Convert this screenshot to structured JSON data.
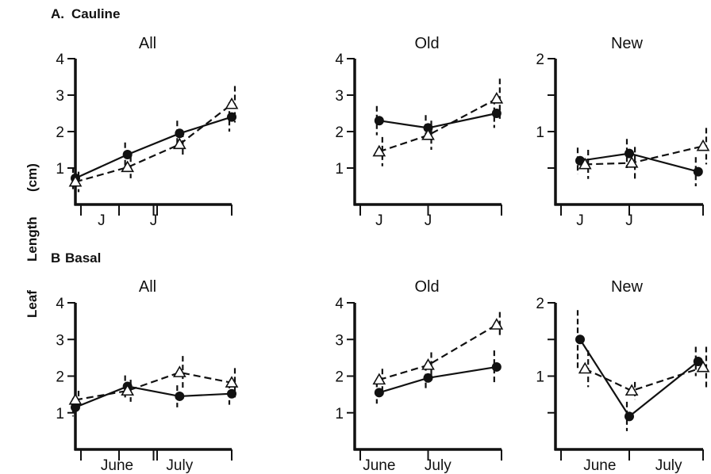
{
  "figure": {
    "ylabel_words": [
      "Leaf",
      "Length",
      "(cm)"
    ]
  },
  "sections": [
    {
      "letter": "A.",
      "title": "Cauline"
    },
    {
      "letter": "B",
      "title": "Basal"
    }
  ],
  "chart_data": [
    {
      "type": "line",
      "section": "A. Cauline",
      "title": "All",
      "ylabel": "Leaf Length (cm)",
      "x": [
        1,
        2,
        3,
        4
      ],
      "xlim": [
        1,
        4
      ],
      "x_tick_labels": [
        {
          "at": 1.5,
          "label": "J"
        },
        {
          "at": 2.5,
          "label": "J"
        }
      ],
      "ylim": [
        0,
        4
      ],
      "yticks": [
        1,
        2,
        3,
        4
      ],
      "series": [
        {
          "marker": "filled-circle",
          "line": "solid",
          "values": [
            0.72,
            1.37,
            1.95,
            2.4
          ],
          "err": [
            0.3,
            0.33,
            0.35,
            0.4
          ]
        },
        {
          "marker": "open-triangle",
          "line": "dashed",
          "values": [
            0.62,
            1.02,
            1.65,
            2.75
          ],
          "err": [
            0.28,
            0.3,
            0.35,
            0.5
          ]
        }
      ]
    },
    {
      "type": "line",
      "section": "A. Cauline",
      "title": "Old",
      "x": [
        1,
        2,
        3,
        4
      ],
      "xlim": [
        1,
        4
      ],
      "x_tick_labels": [
        {
          "at": 1.5,
          "label": "J"
        },
        {
          "at": 2.5,
          "label": "J"
        }
      ],
      "ylim": [
        0,
        4
      ],
      "yticks": [
        1,
        2,
        3,
        4
      ],
      "series": [
        {
          "marker": "filled-circle",
          "line": "solid",
          "values": [
            2.3,
            2.1,
            2.5
          ],
          "x": [
            1.5,
            2.5,
            3.9
          ],
          "err": [
            0.4,
            0.35,
            0.4
          ]
        },
        {
          "marker": "open-triangle",
          "line": "dashed",
          "values": [
            1.45,
            1.9,
            2.9
          ],
          "x": [
            1.5,
            2.5,
            3.9
          ],
          "err": [
            0.4,
            0.4,
            0.55
          ]
        }
      ]
    },
    {
      "type": "line",
      "section": "A. Cauline",
      "title": "New",
      "x": [
        1,
        2,
        3,
        4
      ],
      "xlim": [
        1,
        4
      ],
      "x_tick_labels": [
        {
          "at": 1.5,
          "label": "J"
        },
        {
          "at": 2.5,
          "label": "J"
        }
      ],
      "ylim": [
        0,
        2
      ],
      "yticks": [
        1,
        2
      ],
      "series": [
        {
          "marker": "filled-circle",
          "line": "solid",
          "values": [
            0.6,
            0.7,
            0.45
          ],
          "x": [
            1.5,
            2.5,
            3.9
          ],
          "err": [
            0.18,
            0.2,
            0.2
          ]
        },
        {
          "marker": "open-triangle",
          "line": "dashed",
          "values": [
            0.55,
            0.57,
            0.8
          ],
          "x": [
            1.6,
            2.55,
            4.0
          ],
          "err": [
            0.2,
            0.22,
            0.25
          ]
        }
      ]
    },
    {
      "type": "line",
      "section": "B Basal",
      "title": "All",
      "x": [
        1,
        2,
        3,
        4
      ],
      "xlim": [
        1,
        4
      ],
      "x_tick_labels": [
        {
          "at": 1.8,
          "label": "June"
        },
        {
          "at": 3.0,
          "label": "July"
        }
      ],
      "ylim": [
        0,
        4
      ],
      "yticks": [
        1,
        2,
        3,
        4
      ],
      "series": [
        {
          "marker": "filled-circle",
          "line": "solid",
          "values": [
            1.15,
            1.72,
            1.45,
            1.52
          ],
          "err": [
            0.25,
            0.3,
            0.3,
            0.3
          ]
        },
        {
          "marker": "open-triangle",
          "line": "dashed",
          "values": [
            1.35,
            1.6,
            2.1,
            1.82
          ],
          "err": [
            0.25,
            0.3,
            0.45,
            0.4
          ]
        }
      ]
    },
    {
      "type": "line",
      "section": "B Basal",
      "title": "Old",
      "x": [
        1,
        2,
        3,
        4
      ],
      "xlim": [
        1,
        4
      ],
      "x_tick_labels": [
        {
          "at": 1.5,
          "label": "June"
        },
        {
          "at": 2.7,
          "label": "July"
        }
      ],
      "ylim": [
        0,
        4
      ],
      "yticks": [
        1,
        2,
        3,
        4
      ],
      "series": [
        {
          "marker": "filled-circle",
          "line": "solid",
          "values": [
            1.55,
            1.95,
            2.25
          ],
          "x": [
            1.5,
            2.5,
            3.9
          ],
          "err": [
            0.3,
            0.35,
            0.45
          ]
        },
        {
          "marker": "open-triangle",
          "line": "dashed",
          "values": [
            1.9,
            2.3,
            3.4
          ],
          "x": [
            1.5,
            2.5,
            3.9
          ],
          "err": [
            0.3,
            0.35,
            0.35
          ]
        }
      ]
    },
    {
      "type": "line",
      "section": "B Basal",
      "title": "New",
      "x": [
        1,
        2,
        3,
        4
      ],
      "xlim": [
        1,
        4
      ],
      "x_tick_labels": [
        {
          "at": 1.9,
          "label": "June"
        },
        {
          "at": 3.3,
          "label": "July"
        }
      ],
      "ylim": [
        0,
        2
      ],
      "yticks": [
        1,
        2
      ],
      "series": [
        {
          "marker": "filled-circle",
          "line": "solid",
          "values": [
            1.5,
            0.45,
            1.2
          ],
          "x": [
            1.5,
            2.5,
            3.9
          ],
          "err": [
            0.4,
            0.2,
            0.2
          ]
        },
        {
          "marker": "open-triangle",
          "line": "dashed",
          "values": [
            1.1,
            0.8,
            1.12
          ],
          "x": [
            1.6,
            2.55,
            4.0
          ],
          "err": [
            0.25,
            0.12,
            0.28
          ]
        }
      ]
    }
  ]
}
